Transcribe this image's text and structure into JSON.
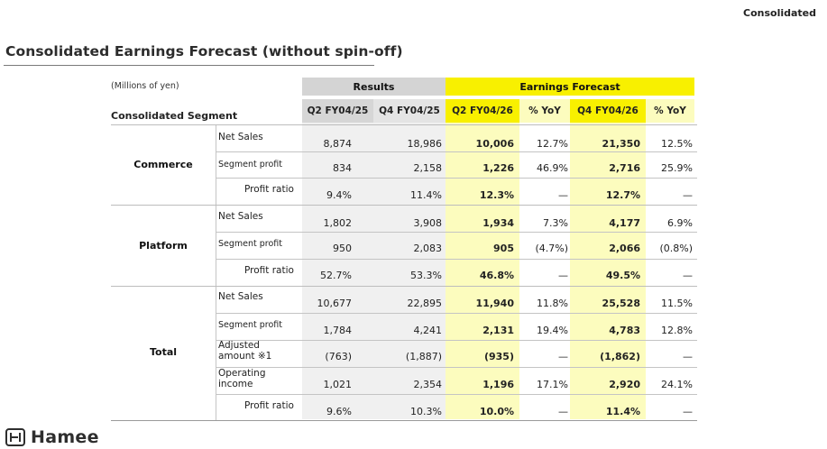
{
  "corner_tag": "Consolidated",
  "title": "Consolidated Earnings Forecast (without spin-off)",
  "table": {
    "units": "(Millions of yen)",
    "segment_header": "Consolidated Segment",
    "group_headers": {
      "results": "Results",
      "forecast": "Earnings Forecast"
    },
    "columns": [
      "Q2 FY04/25",
      "Q4 FY04/25",
      "Q2 FY04/26",
      "% YoY",
      "Q4 FY04/26",
      "% YoY"
    ],
    "segments": [
      {
        "name": "Commerce",
        "rows": [
          {
            "label": "Net Sales",
            "values": [
              "8,874",
              "18,986",
              "10,006",
              "12.7%",
              "21,350",
              "12.5%"
            ]
          },
          {
            "label": "Segment profit",
            "values": [
              "834",
              "2,158",
              "1,226",
              "46.9%",
              "2,716",
              "25.9%"
            ]
          },
          {
            "label": "Profit ratio",
            "values": [
              "9.4%",
              "11.4%",
              "12.3%",
              "—",
              "12.7%",
              "—"
            ]
          }
        ]
      },
      {
        "name": "Platform",
        "rows": [
          {
            "label": "Net Sales",
            "values": [
              "1,802",
              "3,908",
              "1,934",
              "7.3%",
              "4,177",
              "6.9%"
            ]
          },
          {
            "label": "Segment profit",
            "values": [
              "950",
              "2,083",
              "905",
              "(4.7%)",
              "2,066",
              "(0.8%)"
            ]
          },
          {
            "label": "Profit ratio",
            "values": [
              "52.7%",
              "53.3%",
              "46.8%",
              "—",
              "49.5%",
              "—"
            ]
          }
        ]
      },
      {
        "name": "Total",
        "rows": [
          {
            "label": "Net Sales",
            "values": [
              "10,677",
              "22,895",
              "11,940",
              "11.8%",
              "25,528",
              "11.5%"
            ]
          },
          {
            "label": "Segment profit",
            "values": [
              "1,784",
              "4,241",
              "2,131",
              "19.4%",
              "4,783",
              "12.8%"
            ]
          },
          {
            "label_line1": "Adjusted",
            "label_line2": "amount ※1",
            "values": [
              "(763)",
              "(1,887)",
              "(935)",
              "—",
              "(1,862)",
              "—"
            ]
          },
          {
            "label_line1": "Operating",
            "label_line2": "income",
            "values": [
              "1,021",
              "2,354",
              "1,196",
              "17.1%",
              "2,920",
              "24.1%"
            ]
          },
          {
            "label": "Profit ratio",
            "values": [
              "9.6%",
              "10.3%",
              "10.0%",
              "—",
              "11.4%",
              "—"
            ]
          }
        ]
      }
    ]
  },
  "logo": {
    "text": "Hamee"
  },
  "colors": {
    "forecast_yellow": "#f8f000",
    "forecast_light": "#fcfcbe",
    "results_gray": "#d4d4d4"
  }
}
